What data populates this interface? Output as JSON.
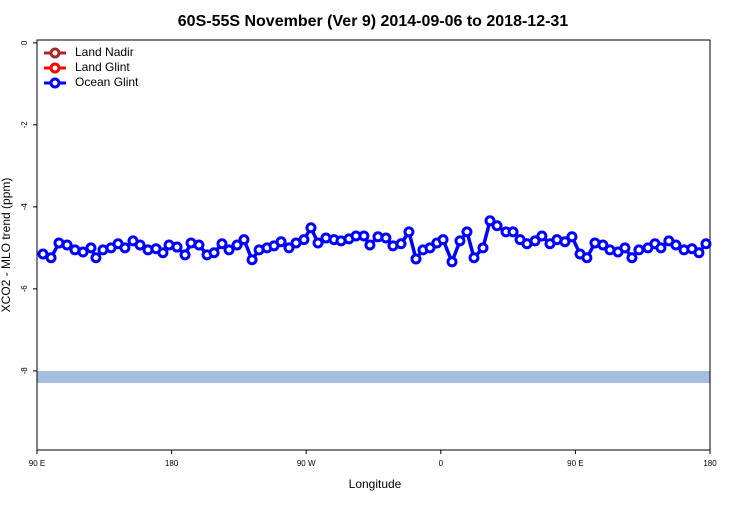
{
  "chart_data": {
    "type": "line",
    "title": "60S-55S November (Ver 9)   2014-09-06 to 2018-12-31",
    "x_label": "Longitude",
    "y_label": "XCO2 - MLO trend (ppm)",
    "xlim": [
      90,
      540
    ],
    "ylim": [
      -9.93,
      0.07
    ],
    "xticks": [
      {
        "value": 90,
        "label": "90 E"
      },
      180,
      {
        "value": 270,
        "label": "90 W"
      },
      {
        "value": 360,
        "label": "0"
      },
      {
        "value": 450,
        "label": "90 E"
      },
      {
        "value": 540,
        "label": "180"
      }
    ],
    "yticks": [
      0,
      -2,
      -4,
      -6,
      -8
    ],
    "legend": "top-left",
    "reference_band": {
      "value": -8.15,
      "color": "#a7bddf"
    },
    "series": [
      {
        "name": "Land Nadir",
        "color": "#a52a2a",
        "x": [],
        "values": []
      },
      {
        "name": "Land Glint",
        "color": "#ff0000",
        "x": [],
        "values": []
      },
      {
        "name": "Ocean Glint",
        "color": "#0000ff",
        "x": [
          94.0,
          99.4,
          104.7,
          110.1,
          115.4,
          120.8,
          126.1,
          129.4,
          134.1,
          139.5,
          144.2,
          148.8,
          154.2,
          158.9,
          164.2,
          169.6,
          174.2,
          178.3,
          183.6,
          189.0,
          193.0,
          198.3,
          203.7,
          208.4,
          213.7,
          218.4,
          223.8,
          228.4,
          233.8,
          238.5,
          243.8,
          248.5,
          253.2,
          258.5,
          263.2,
          268.5,
          273.2,
          277.9,
          283.2,
          288.6,
          293.3,
          298.6,
          303.3,
          308.6,
          312.6,
          318.0,
          323.3,
          328.0,
          333.4,
          338.7,
          343.4,
          348.1,
          352.8,
          357.4,
          361.5,
          367.5,
          372.8,
          377.5,
          382.2,
          388.2,
          392.9,
          397.6,
          403.6,
          408.3,
          413.0,
          417.6,
          423.0,
          427.6,
          433.0,
          437.7,
          443.0,
          447.7,
          453.1,
          457.7,
          463.1,
          468.4,
          473.1,
          478.5,
          483.1,
          487.8,
          492.5,
          498.5,
          503.2,
          507.2,
          512.5,
          517.2,
          522.6,
          527.9,
          532.6,
          537.3
        ],
        "values": [
          -5.15,
          -5.24,
          -4.88,
          -4.93,
          -5.05,
          -5.1,
          -5.0,
          -5.24,
          -5.05,
          -5.0,
          -4.9,
          -5.0,
          -4.83,
          -4.93,
          -5.05,
          -5.02,
          -5.12,
          -4.93,
          -4.98,
          -5.17,
          -4.88,
          -4.93,
          -5.17,
          -5.12,
          -4.9,
          -5.05,
          -4.93,
          -4.8,
          -5.29,
          -5.05,
          -5.0,
          -4.95,
          -4.85,
          -5.0,
          -4.88,
          -4.8,
          -4.51,
          -4.88,
          -4.76,
          -4.8,
          -4.83,
          -4.78,
          -4.71,
          -4.71,
          -4.93,
          -4.73,
          -4.76,
          -4.95,
          -4.9,
          -4.61,
          -5.27,
          -5.05,
          -5.0,
          -4.88,
          -4.8,
          -5.34,
          -4.83,
          -4.61,
          -5.24,
          -5.0,
          -4.34,
          -4.46,
          -4.61,
          -4.61,
          -4.8,
          -4.9,
          -4.83,
          -4.71,
          -4.9,
          -4.8,
          -4.85,
          -4.73,
          -5.15,
          -5.24,
          -4.88,
          -4.93,
          -5.05,
          -5.1,
          -5.0,
          -5.24,
          -5.05,
          -5.0,
          -4.9,
          -5.0,
          -4.83,
          -4.93,
          -5.05,
          -5.02,
          -5.12,
          -4.9
        ]
      }
    ]
  }
}
